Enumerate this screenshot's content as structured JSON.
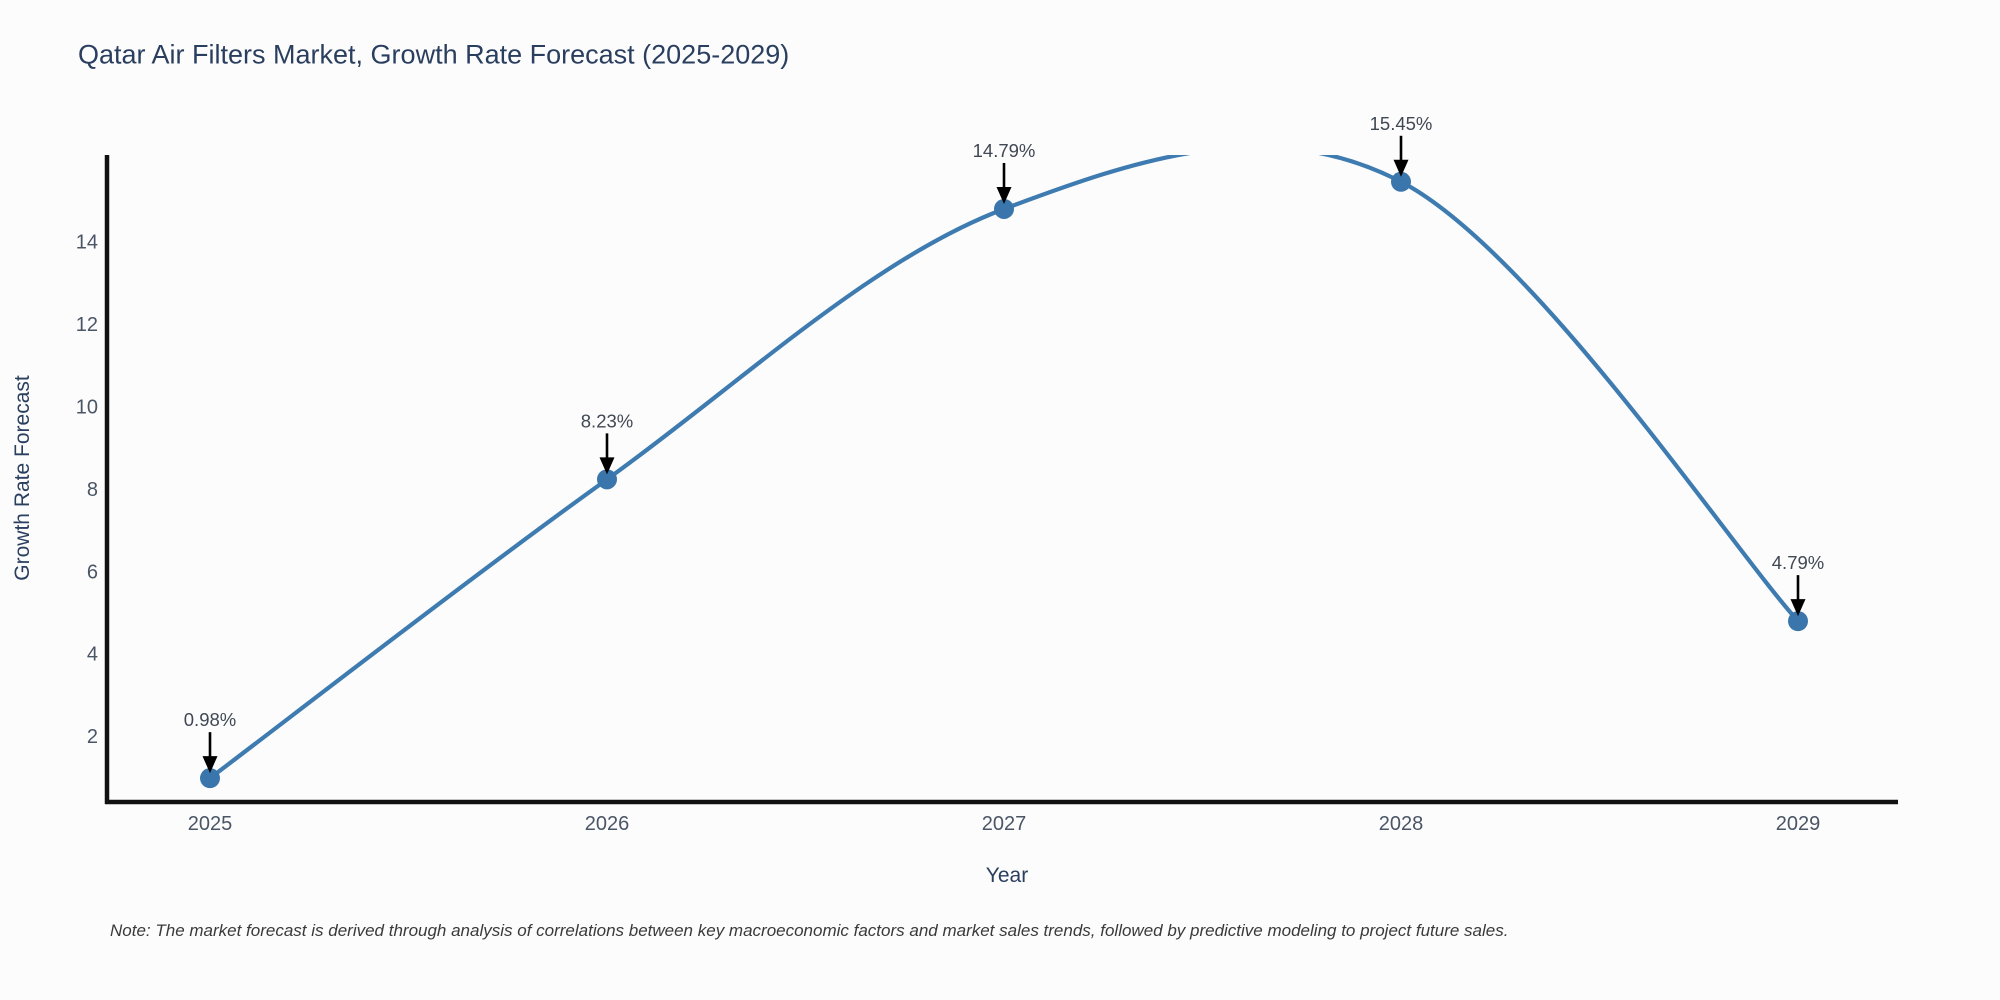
{
  "chart_data": {
    "type": "line",
    "title": "Qatar Air Filters Market, Growth Rate Forecast (2025-2029)",
    "xlabel": "Year",
    "ylabel": "Growth Rate Forecast",
    "categories": [
      "2025",
      "2026",
      "2027",
      "2028",
      "2029"
    ],
    "values": [
      0.98,
      8.23,
      14.79,
      15.45,
      4.79
    ],
    "point_labels": [
      "0.98%",
      "8.23%",
      "14.79%",
      "15.45%",
      "4.79%"
    ],
    "yticks": [
      2,
      4,
      6,
      8,
      10,
      12,
      14
    ],
    "ylim": [
      0.45,
      16.1
    ],
    "line_shape": "spline",
    "grid": false,
    "legend": false,
    "note": "Note: The market forecast is derived through analysis of correlations between key macroeconomic factors and market sales trends, followed by predictive modeling to project future sales.",
    "colors": {
      "line": "#3e7bb0",
      "marker": "#3a76ab",
      "arrow": "#000000",
      "axis": "#111111",
      "title_text": "#2a3f5f",
      "tick_text": "#4a5566",
      "annotation_text": "#404854",
      "note_text": "#3a3a3a",
      "background": "#fcfcfc"
    }
  }
}
